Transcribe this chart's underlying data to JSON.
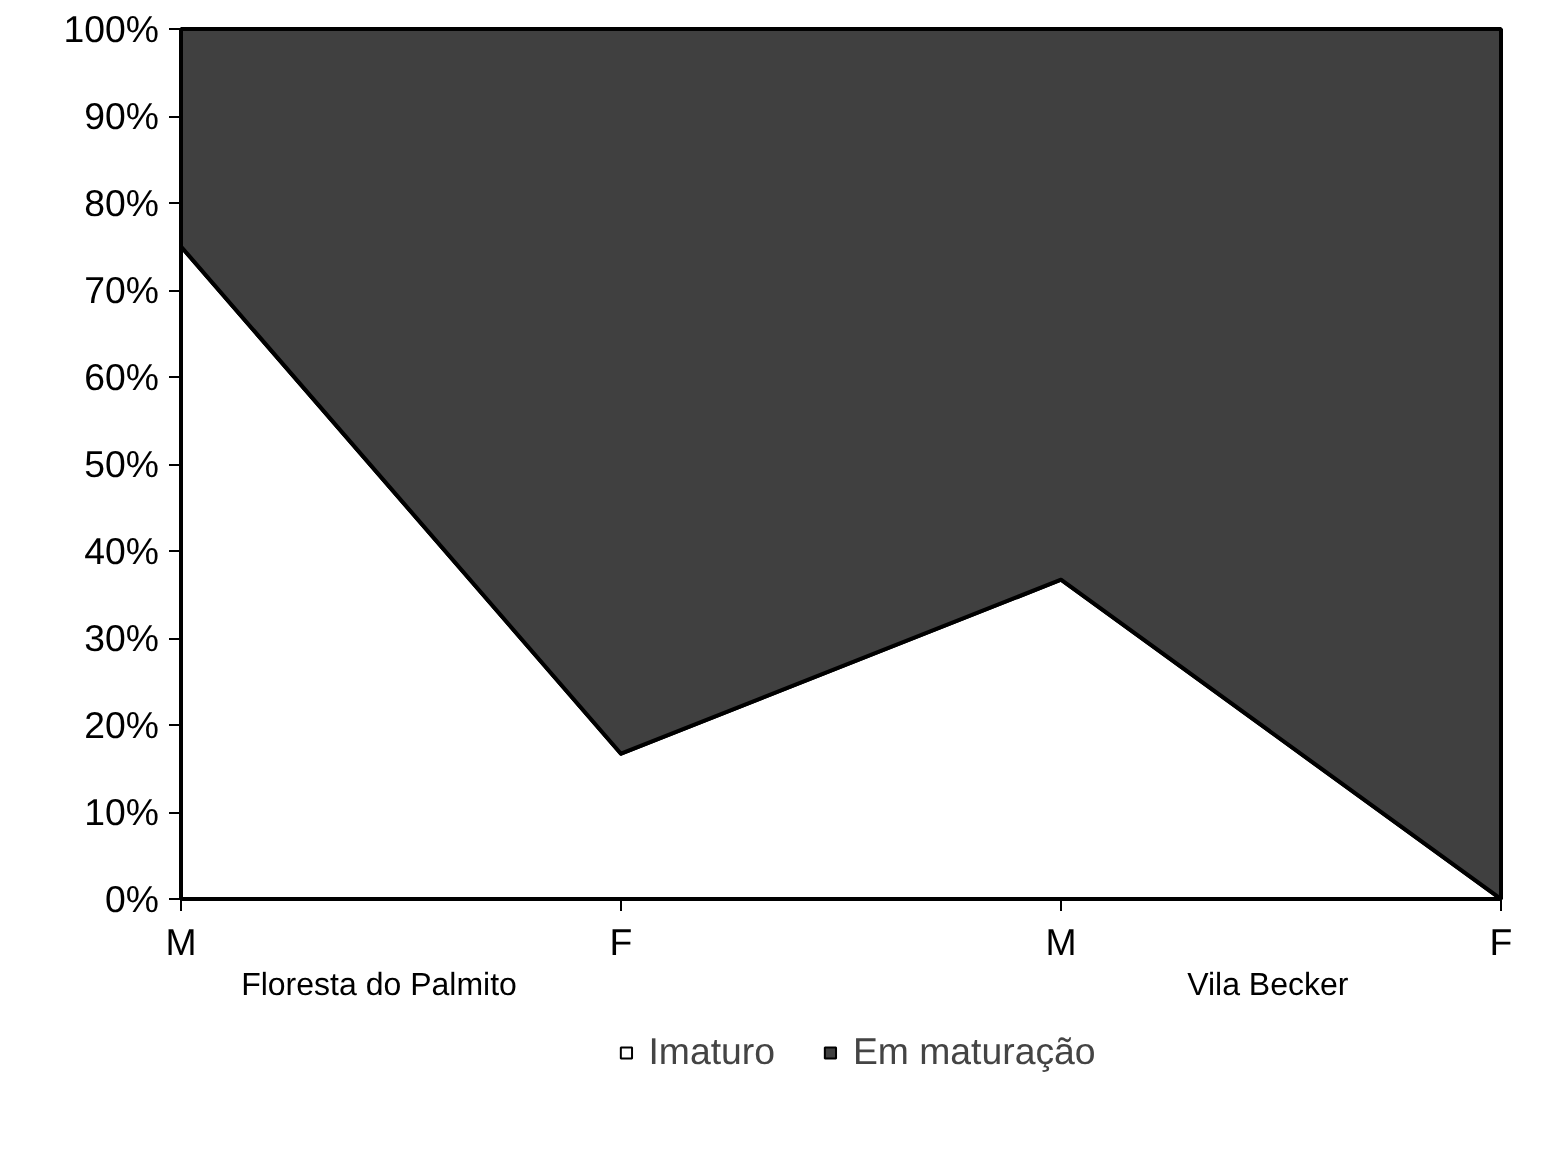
{
  "chart_data": {
    "type": "area",
    "stacked": true,
    "categories": [
      "M",
      "F",
      "M",
      "F"
    ],
    "series": [
      {
        "name": "Imaturo",
        "color": "#ffffff",
        "values": [
          75,
          16.7,
          36.7,
          0
        ]
      },
      {
        "name": "Em maturação",
        "color": "#404040",
        "values": [
          25,
          83.3,
          63.3,
          100
        ]
      }
    ],
    "ylim": [
      0,
      100
    ],
    "yticks": [
      {
        "value": 0,
        "label": "0%"
      },
      {
        "value": 10,
        "label": "10%"
      },
      {
        "value": 20,
        "label": "20%"
      },
      {
        "value": 30,
        "label": "30%"
      },
      {
        "value": 40,
        "label": "40%"
      },
      {
        "value": 50,
        "label": "50%"
      },
      {
        "value": 60,
        "label": "60%"
      },
      {
        "value": 70,
        "label": "70%"
      },
      {
        "value": 80,
        "label": "80%"
      },
      {
        "value": 90,
        "label": "90%"
      },
      {
        "value": 100,
        "label": "100%"
      }
    ],
    "annotations": [
      "Floresta do Palmito",
      "Vila Becker"
    ],
    "legend": "bottom"
  }
}
